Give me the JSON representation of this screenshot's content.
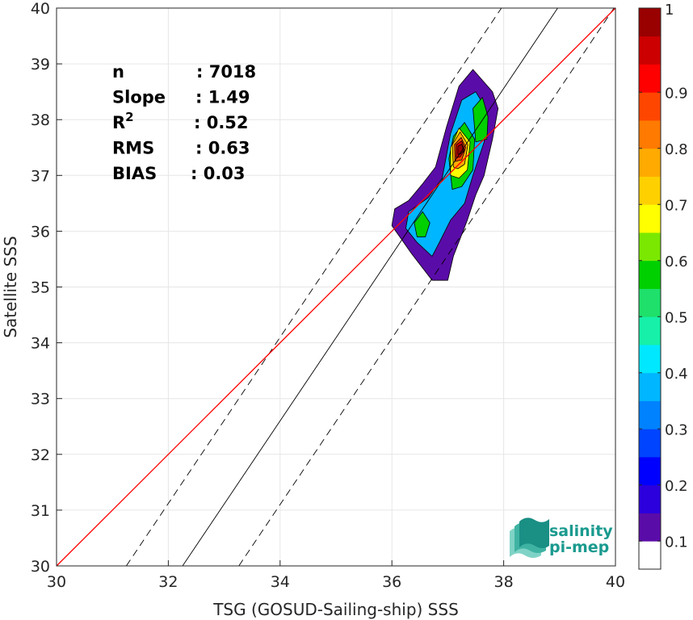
{
  "chart_data": {
    "type": "heatmap",
    "subtype": "density-contour-scatter",
    "title": "",
    "xlabel": "TSG (GOSUD-Sailing-ship) SSS",
    "ylabel": "Satellite SSS",
    "xlim": [
      30,
      40
    ],
    "ylim": [
      30,
      40
    ],
    "xticks": [
      30,
      32,
      34,
      36,
      38,
      40
    ],
    "yticks": [
      30,
      31,
      32,
      33,
      34,
      35,
      36,
      37,
      38,
      39,
      40
    ],
    "grid": true,
    "stats": [
      {
        "label": "n",
        "value": ": 7018"
      },
      {
        "label": "Slope",
        "value": ": 1.49"
      },
      {
        "label": "R",
        "sup": "2",
        "value": ": 0.52"
      },
      {
        "label": "RMS",
        "value": ": 0.63"
      },
      {
        "label": "BIAS",
        "value": ": 0.03"
      }
    ],
    "reference_lines": {
      "identity": {
        "slope": 1,
        "intercept": 0,
        "color": "#ff0000"
      },
      "regression": {
        "slope": 1.49,
        "intercept": -18.06,
        "color": "#000000"
      },
      "regression_bounds": {
        "offset": 1.5,
        "style": "dashed"
      }
    },
    "density_levels": [
      {
        "level": 0.05,
        "ring": [
          [
            37.0,
            35.12
          ],
          [
            36.72,
            35.12
          ],
          [
            36.35,
            35.6
          ],
          [
            36.0,
            36.1
          ],
          [
            36.05,
            36.4
          ],
          [
            36.3,
            36.55
          ],
          [
            36.55,
            36.85
          ],
          [
            36.78,
            37.15
          ],
          [
            36.98,
            37.88
          ],
          [
            37.2,
            38.6
          ],
          [
            37.45,
            38.9
          ],
          [
            37.8,
            38.5
          ],
          [
            37.9,
            38.2
          ],
          [
            37.8,
            37.65
          ],
          [
            37.65,
            37.0
          ],
          [
            37.5,
            36.65
          ],
          [
            37.35,
            36.2
          ],
          [
            37.1,
            35.55
          ]
        ]
      },
      {
        "level": 0.3,
        "ring": [
          [
            36.72,
            35.55
          ],
          [
            36.45,
            35.8
          ],
          [
            36.25,
            36.05
          ],
          [
            36.3,
            36.35
          ],
          [
            36.65,
            36.6
          ],
          [
            36.9,
            36.95
          ],
          [
            37.05,
            37.75
          ],
          [
            37.25,
            38.35
          ],
          [
            37.5,
            38.5
          ],
          [
            37.68,
            38.2
          ],
          [
            37.65,
            37.6
          ],
          [
            37.45,
            37.0
          ],
          [
            37.3,
            36.5
          ],
          [
            37.05,
            36.2
          ],
          [
            36.85,
            35.8
          ]
        ]
      },
      {
        "level": 0.5,
        "ring": [
          [
            37.08,
            36.75
          ],
          [
            37.02,
            37.3
          ],
          [
            37.1,
            37.7
          ],
          [
            37.3,
            37.95
          ],
          [
            37.48,
            37.65
          ],
          [
            37.45,
            37.1
          ],
          [
            37.25,
            36.8
          ]
        ]
      },
      {
        "level": 0.5,
        "ring": [
          [
            36.45,
            35.9
          ],
          [
            36.4,
            36.15
          ],
          [
            36.55,
            36.35
          ],
          [
            36.68,
            36.15
          ],
          [
            36.6,
            35.9
          ]
        ]
      },
      {
        "level": 0.5,
        "ring": [
          [
            37.5,
            37.6
          ],
          [
            37.45,
            38.2
          ],
          [
            37.62,
            38.4
          ],
          [
            37.72,
            38.05
          ],
          [
            37.7,
            37.65
          ]
        ]
      },
      {
        "level": 0.6,
        "ring": [
          [
            37.05,
            37.0
          ],
          [
            37.05,
            37.5
          ],
          [
            37.2,
            37.85
          ],
          [
            37.4,
            37.6
          ],
          [
            37.35,
            37.1
          ],
          [
            37.2,
            36.95
          ]
        ]
      },
      {
        "level": 0.7,
        "ring": [
          [
            37.1,
            37.15
          ],
          [
            37.08,
            37.55
          ],
          [
            37.22,
            37.78
          ],
          [
            37.36,
            37.55
          ],
          [
            37.3,
            37.2
          ],
          [
            37.18,
            37.12
          ]
        ]
      },
      {
        "level": 0.8,
        "ring": [
          [
            37.13,
            37.25
          ],
          [
            37.12,
            37.55
          ],
          [
            37.24,
            37.68
          ],
          [
            37.32,
            37.5
          ],
          [
            37.25,
            37.28
          ]
        ]
      },
      {
        "level": 0.9,
        "ring": [
          [
            37.15,
            37.32
          ],
          [
            37.15,
            37.55
          ],
          [
            37.25,
            37.62
          ],
          [
            37.3,
            37.45
          ],
          [
            37.22,
            37.33
          ]
        ]
      },
      {
        "level": 1.0,
        "ring": [
          [
            37.18,
            37.38
          ],
          [
            37.18,
            37.52
          ],
          [
            37.25,
            37.56
          ],
          [
            37.28,
            37.44
          ],
          [
            37.22,
            37.38
          ]
        ]
      }
    ],
    "colorbar": {
      "ticks": [
        "0.1",
        "0.2",
        "0.3",
        "0.4",
        "0.5",
        "0.6",
        "0.7",
        "0.8",
        "0.9",
        "1"
      ],
      "top": "1",
      "colors": [
        "#ffffff",
        "#5a0ca8",
        "#2c00dc",
        "#0000ff",
        "#0044ff",
        "#0082ff",
        "#00b6ff",
        "#00e8ff",
        "#16f0a8",
        "#1ee06a",
        "#00d000",
        "#7ae800",
        "#ffff00",
        "#ffd000",
        "#ffaa00",
        "#ff7a00",
        "#ff4600",
        "#ff0000",
        "#cc0000",
        "#990000"
      ]
    }
  },
  "logo": {
    "line1": "salinity",
    "line2": "pi-mep"
  }
}
